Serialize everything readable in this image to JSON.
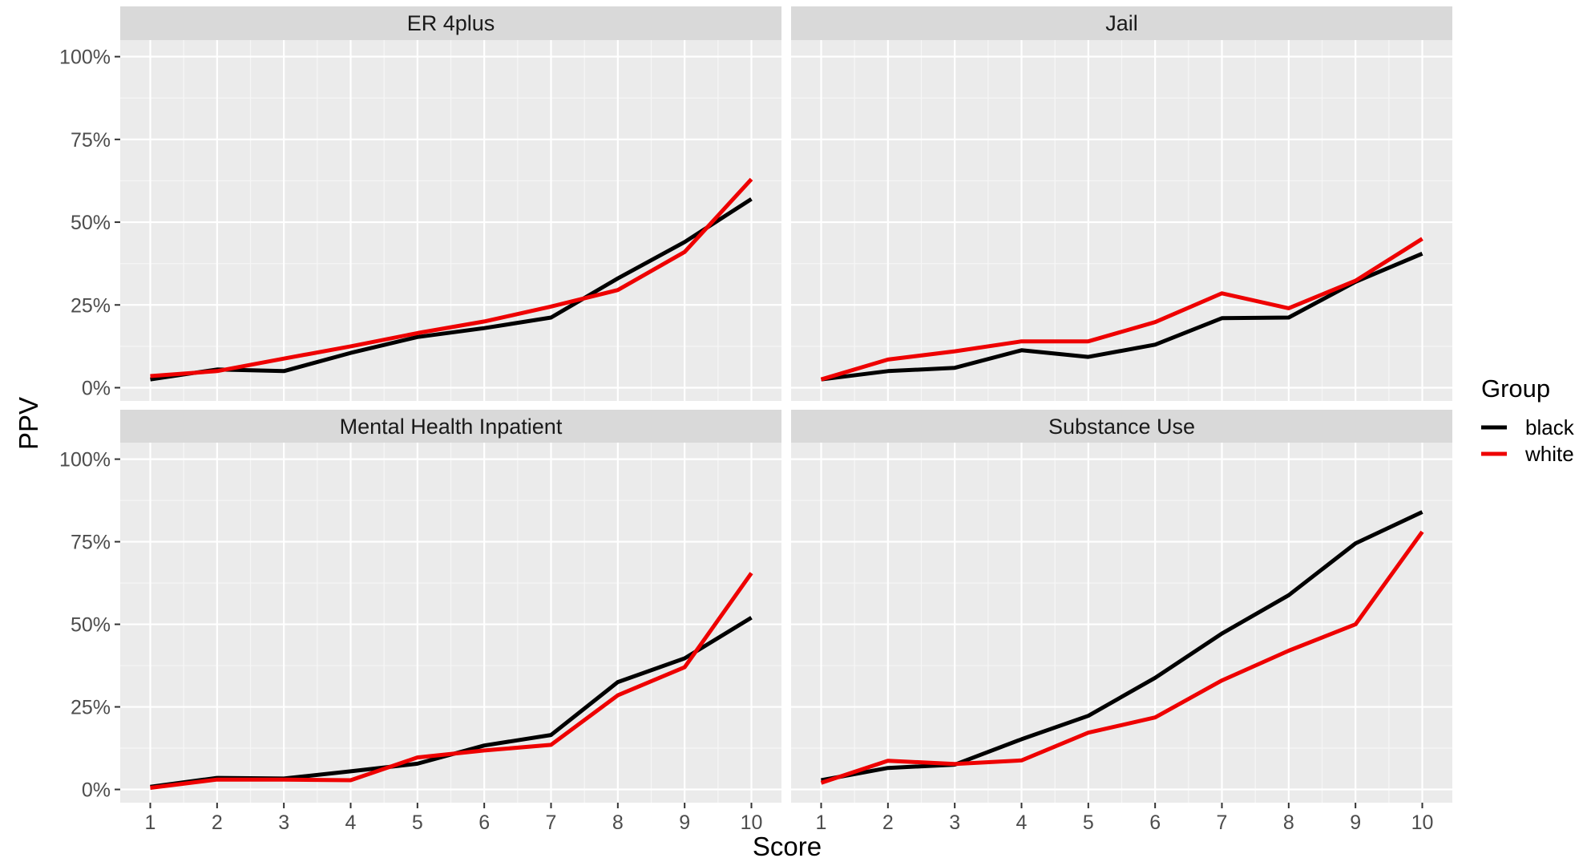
{
  "chart_data": {
    "type": "line",
    "xlabel": "Score",
    "ylabel": "PPV",
    "x": [
      1,
      2,
      3,
      4,
      5,
      6,
      7,
      8,
      9,
      10
    ],
    "ylim": [
      -0.04,
      1.05
    ],
    "y_ticks": [
      0,
      0.25,
      0.5,
      0.75,
      1.0
    ],
    "y_tick_labels": [
      "0%",
      "25%",
      "50%",
      "75%",
      "100%"
    ],
    "grid": true,
    "legend": {
      "title": "Group",
      "position": "right",
      "entries": [
        "black",
        "white"
      ]
    },
    "series_colors": {
      "black": "#000000",
      "white": "#ee0000"
    },
    "panels": [
      {
        "title": "ER 4plus",
        "series": [
          {
            "name": "black",
            "values": [
              0.025,
              0.055,
              0.05,
              0.105,
              0.153,
              0.18,
              0.212,
              0.33,
              0.44,
              0.57
            ]
          },
          {
            "name": "white",
            "values": [
              0.035,
              0.05,
              0.088,
              0.125,
              0.165,
              0.2,
              0.245,
              0.295,
              0.41,
              0.63
            ]
          }
        ]
      },
      {
        "title": "Jail",
        "series": [
          {
            "name": "black",
            "values": [
              0.025,
              0.05,
              0.06,
              0.113,
              0.093,
              0.13,
              0.21,
              0.212,
              0.32,
              0.405
            ]
          },
          {
            "name": "white",
            "values": [
              0.025,
              0.085,
              0.11,
              0.14,
              0.14,
              0.198,
              0.285,
              0.24,
              0.323,
              0.45
            ]
          }
        ]
      },
      {
        "title": "Mental Health Inpatient",
        "series": [
          {
            "name": "black",
            "values": [
              0.008,
              0.035,
              0.033,
              0.055,
              0.078,
              0.133,
              0.165,
              0.325,
              0.397,
              0.52
            ]
          },
          {
            "name": "white",
            "values": [
              0.005,
              0.03,
              0.03,
              0.028,
              0.097,
              0.118,
              0.135,
              0.285,
              0.37,
              0.655
            ]
          }
        ]
      },
      {
        "title": "Substance Use",
        "series": [
          {
            "name": "black",
            "values": [
              0.028,
              0.065,
              0.075,
              0.152,
              0.223,
              0.338,
              0.472,
              0.588,
              0.745,
              0.84
            ]
          },
          {
            "name": "white",
            "values": [
              0.02,
              0.087,
              0.077,
              0.088,
              0.172,
              0.218,
              0.33,
              0.42,
              0.5,
              0.78
            ]
          }
        ]
      }
    ]
  }
}
